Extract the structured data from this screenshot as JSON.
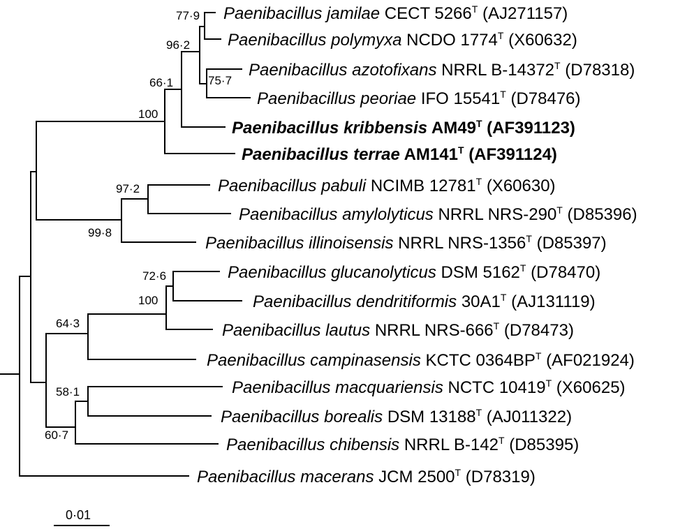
{
  "taxa": [
    {
      "genus": "Paenibacillus",
      "species": "jamilae",
      "strain": "CECT 5266",
      "type_mark": "T",
      "accession": "(AJ271157)",
      "bold": false
    },
    {
      "genus": "Paenibacillus",
      "species": "polymyxa",
      "strain": "NCDO 1774",
      "type_mark": "T",
      "accession": "(X60632)",
      "bold": false
    },
    {
      "genus": "Paenibacillus",
      "species": "azotofixans",
      "strain": "NRRL B-14372",
      "type_mark": "T",
      "accession": "(D78318)",
      "bold": false
    },
    {
      "genus": "Paenibacillus",
      "species": "peoriae",
      "strain": "IFO 15541",
      "type_mark": "T",
      "accession": "(D78476)",
      "bold": false
    },
    {
      "genus": "Paenibacillus",
      "species": "kribbensis",
      "strain": "AM49",
      "type_mark": "T",
      "accession": "(AF391123)",
      "bold": true
    },
    {
      "genus": "Paenibacillus",
      "species": "terrae",
      "strain": "AM141",
      "type_mark": "T",
      "accession": "(AF391124)",
      "bold": true
    },
    {
      "genus": "Paenibacillus",
      "species": "pabuli",
      "strain": "NCIMB 12781",
      "type_mark": "T",
      "accession": "(X60630)",
      "bold": false
    },
    {
      "genus": "Paenibacillus",
      "species": "amylolyticus",
      "strain": "NRRL NRS-290",
      "type_mark": "T",
      "accession": "(D85396)",
      "bold": false
    },
    {
      "genus": "Paenibacillus",
      "species": "illinoisensis",
      "strain": "NRRL NRS-1356",
      "type_mark": "T",
      "accession": "(D85397)",
      "bold": false
    },
    {
      "genus": "Paenibacillus",
      "species": "glucanolyticus",
      "strain": "DSM 5162",
      "type_mark": "T",
      "accession": "(D78470)",
      "bold": false
    },
    {
      "genus": "Paenibacillus",
      "species": "dendritiformis",
      "strain": "30A1",
      "type_mark": "T",
      "accession": "(AJ131119)",
      "bold": false
    },
    {
      "genus": "Paenibacillus",
      "species": "lautus",
      "strain": "NRRL NRS-666",
      "type_mark": "T",
      "accession": "(D78473)",
      "bold": false
    },
    {
      "genus": "Paenibacillus",
      "species": "campinasensis",
      "strain": "KCTC 0364BP",
      "type_mark": "T",
      "accession": "(AF021924)",
      "bold": false
    },
    {
      "genus": "Paenibacillus",
      "species": "macquariensis",
      "strain": "NCTC 10419",
      "type_mark": "T",
      "accession": "(X60625)",
      "bold": false
    },
    {
      "genus": "Paenibacillus",
      "species": "borealis",
      "strain": "DSM 13188",
      "type_mark": "T",
      "accession": "(AJ011322)",
      "bold": false
    },
    {
      "genus": "Paenibacillus",
      "species": "chibensis",
      "strain": "NRRL B-142",
      "type_mark": "T",
      "accession": "(D85395)",
      "bold": false
    },
    {
      "genus": "Paenibacillus",
      "species": "macerans",
      "strain": "JCM 2500",
      "type_mark": "T",
      "accession": "(D78319)",
      "bold": false
    }
  ],
  "bootstrap_values": [
    "77·9",
    "96·2",
    "75·7",
    "66·1",
    "100",
    "97·2",
    "99·8",
    "72·6",
    "100",
    "64·3",
    "58·1",
    "60·7"
  ],
  "scale_bar_label": "0·01"
}
